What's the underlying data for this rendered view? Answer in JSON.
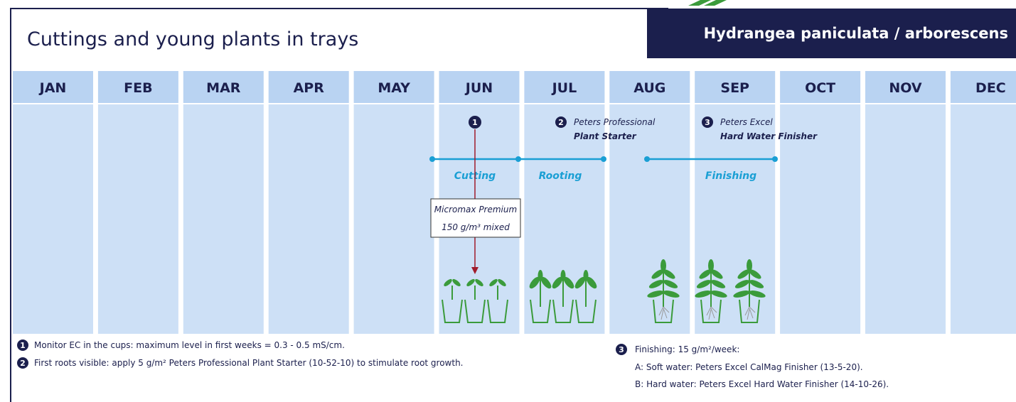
{
  "header": {
    "title": "Cuttings and young plants in trays",
    "subtitle": "Hydrangea paniculata / arborescens"
  },
  "months": [
    "JAN",
    "FEB",
    "MAR",
    "APR",
    "MAY",
    "JUN",
    "JUL",
    "AUG",
    "SEP",
    "OCT",
    "NOV",
    "DEC"
  ],
  "markers": [
    {
      "number": "1"
    },
    {
      "number": "2",
      "lines": [
        "Peters Professional",
        "Plant Starter"
      ]
    },
    {
      "number": "3",
      "lines": [
        "Peters Excel",
        "Hard Water Finisher"
      ]
    }
  ],
  "phases": [
    "Cutting",
    "Rooting",
    "Finishing"
  ],
  "callout": [
    "Micromax Premium",
    "150 g/m³ mixed"
  ],
  "notes": [
    {
      "number": "1",
      "text": "Monitor EC in the cups: maximum level in first weeks = 0.3 - 0.5  mS/cm."
    },
    {
      "number": "2",
      "text": "First roots visible: apply 5 g/m² Peters Professional Plant Starter (10-52-10) to stimulate root growth."
    }
  ],
  "finishing_note": {
    "number": "3",
    "text": "Finishing: 15 g/m²/week:",
    "items": [
      "A: Soft water: Peters Excel CalMag Finisher (13-5-20).",
      "B: Hard water: Peters Excel Hard Water Finisher (14-10-26)."
    ]
  }
}
